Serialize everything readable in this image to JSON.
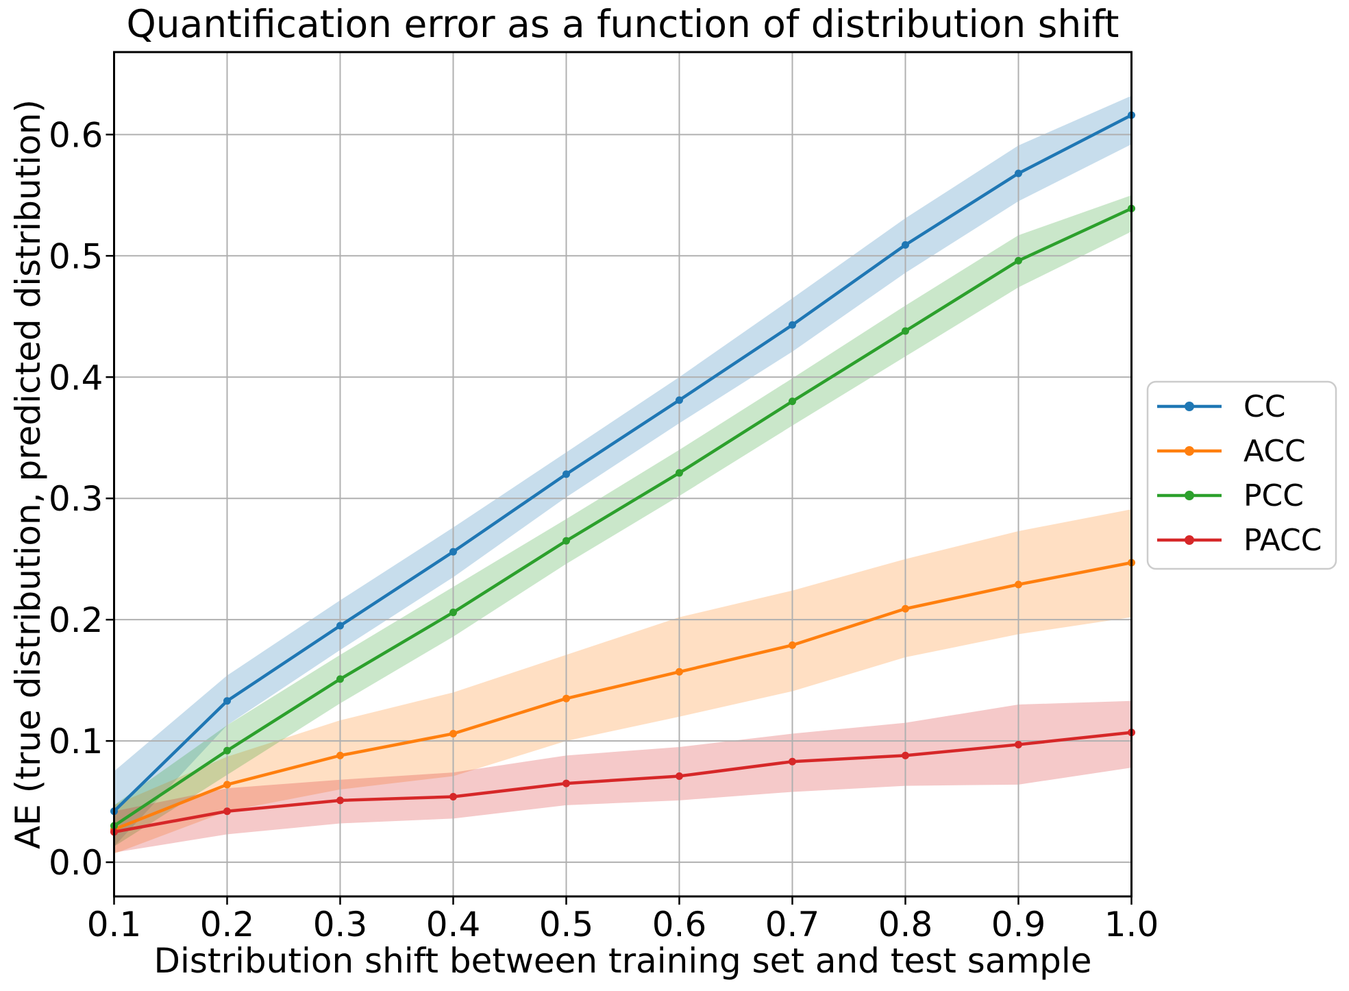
{
  "figure": {
    "background_color": "#ffffff",
    "grid_color": "#b0b0b0",
    "spine_color": "#000000",
    "text_color": "#000000",
    "legend_border_color": "#cccccc"
  },
  "chart_data": {
    "type": "line",
    "title": "Quantification error as a function of distribution shift",
    "xlabel": "Distribution shift between training set and test sample",
    "ylabel": "AE (true distribution, predicted distribution)",
    "grid": true,
    "legend_position": "center-right-outside",
    "xlim": [
      0.1,
      1.0
    ],
    "ylim": [
      -0.0282,
      0.668
    ],
    "x": [
      0.1,
      0.2,
      0.3,
      0.4,
      0.5,
      0.6,
      0.7,
      0.8,
      0.9,
      1.0
    ],
    "x_tick_labels": [
      "0.1",
      "0.2",
      "0.3",
      "0.4",
      "0.5",
      "0.6",
      "0.7",
      "0.8",
      "0.9",
      "1.0"
    ],
    "y_tick_labels": [
      "0.0",
      "0.1",
      "0.2",
      "0.3",
      "0.4",
      "0.5",
      "0.6"
    ],
    "band_alpha": 0.25,
    "series": [
      {
        "name": "CC",
        "color": "#1f77b4",
        "values": [
          0.042,
          0.133,
          0.195,
          0.256,
          0.32,
          0.381,
          0.443,
          0.509,
          0.568,
          0.616
        ],
        "band_lower": [
          0.013,
          0.113,
          0.175,
          0.235,
          0.301,
          0.362,
          0.421,
          0.486,
          0.545,
          0.592
        ],
        "band_upper": [
          0.075,
          0.154,
          0.216,
          0.276,
          0.338,
          0.4,
          0.465,
          0.531,
          0.591,
          0.632
        ]
      },
      {
        "name": "ACC",
        "color": "#ff7f0e",
        "values": [
          0.027,
          0.064,
          0.088,
          0.106,
          0.135,
          0.157,
          0.179,
          0.209,
          0.229,
          0.247
        ],
        "band_lower": [
          0.007,
          0.042,
          0.06,
          0.071,
          0.1,
          0.12,
          0.141,
          0.169,
          0.188,
          0.202
        ],
        "band_upper": [
          0.047,
          0.087,
          0.117,
          0.14,
          0.171,
          0.202,
          0.224,
          0.25,
          0.273,
          0.291
        ]
      },
      {
        "name": "PCC",
        "color": "#2ca02c",
        "values": [
          0.03,
          0.092,
          0.151,
          0.206,
          0.265,
          0.321,
          0.38,
          0.438,
          0.496,
          0.539
        ],
        "band_lower": [
          0.013,
          0.072,
          0.131,
          0.186,
          0.246,
          0.302,
          0.36,
          0.417,
          0.474,
          0.52
        ],
        "band_upper": [
          0.047,
          0.113,
          0.171,
          0.227,
          0.283,
          0.34,
          0.399,
          0.459,
          0.517,
          0.55
        ]
      },
      {
        "name": "PACC",
        "color": "#d62728",
        "values": [
          0.025,
          0.042,
          0.051,
          0.054,
          0.065,
          0.071,
          0.083,
          0.088,
          0.097,
          0.107
        ],
        "band_lower": [
          0.008,
          0.023,
          0.032,
          0.036,
          0.047,
          0.051,
          0.058,
          0.063,
          0.064,
          0.078
        ],
        "band_upper": [
          0.042,
          0.061,
          0.068,
          0.074,
          0.088,
          0.095,
          0.106,
          0.115,
          0.13,
          0.133
        ]
      }
    ]
  }
}
